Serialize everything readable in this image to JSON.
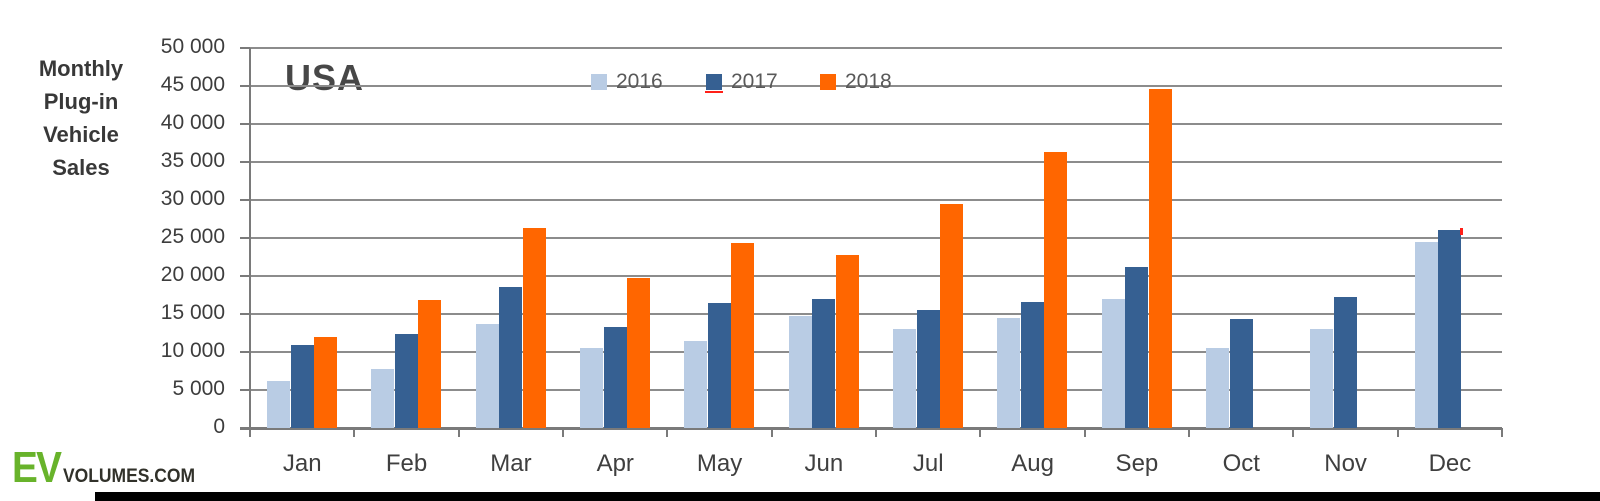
{
  "side_title": {
    "lines": [
      "Monthly",
      "Plug-in",
      "Vehicle",
      "Sales"
    ]
  },
  "logo": {
    "ev": "EV",
    "rest": "VOLUMES.COM"
  },
  "chart_data": {
    "type": "bar",
    "title": "USA",
    "axis_title": "Monthly Plug-in Vehicle Sales",
    "categories": [
      "Jan",
      "Feb",
      "Mar",
      "Apr",
      "May",
      "Jun",
      "Jul",
      "Aug",
      "Sep",
      "Oct",
      "Nov",
      "Dec"
    ],
    "series": [
      {
        "name": "2016",
        "color": "#b9cce4",
        "values": [
          6200,
          7800,
          13700,
          10500,
          11500,
          14800,
          13100,
          14500,
          17000,
          10500,
          13000,
          24500
        ]
      },
      {
        "name": "2017",
        "color": "#366092",
        "values": [
          11000,
          12400,
          18500,
          13300,
          16500,
          17000,
          15500,
          16600,
          21200,
          14300,
          17200,
          26100
        ]
      },
      {
        "name": "2018",
        "color": "#ff6600",
        "values": [
          12000,
          16900,
          26300,
          19700,
          24400,
          22700,
          29400,
          36300,
          44600,
          null,
          null,
          null
        ]
      }
    ],
    "ylim": [
      0,
      50000
    ],
    "ytick_step": 5000,
    "ytick_labels": [
      "0",
      "5 000",
      "10 000",
      "15 000",
      "20 000",
      "25 000",
      "30 000",
      "35 000",
      "40 000",
      "45 000",
      "50 000"
    ],
    "grid": true,
    "legend_position": "top-center"
  },
  "colors": {
    "background": "#ffffff",
    "gridline": "#8c8c8c",
    "axis": "#7a7a7a",
    "text_dark": "#3d3d3d",
    "legend_text": "#595959",
    "title_gray": "#474747",
    "logo_green": "#68b32b",
    "logo_dark": "#31312a",
    "artifact_red": "#ff2018",
    "bottom_bar": "#000000"
  }
}
